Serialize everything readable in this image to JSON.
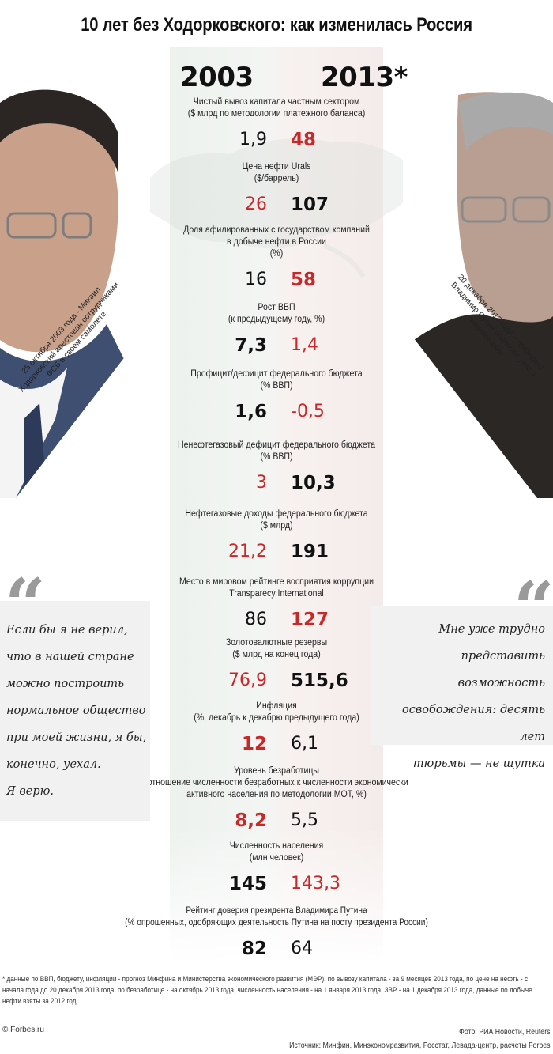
{
  "title": "10 лет без Ходорковского: как изменилась Россия",
  "years": {
    "left": "2003",
    "right": "2013*"
  },
  "rows": [
    {
      "label": [
        "Чистый вывоз капитала частным сектором",
        "($ млрд по методологии платежного баланса)"
      ],
      "v2003": "1,9",
      "v2013": "48"
    },
    {
      "label": [
        "Цена нефти Urals",
        "($/баррель)"
      ],
      "v2003": "26",
      "v2013": "107"
    },
    {
      "label": [
        "Доля афилированных с государством компаний",
        "в добыче нефти в России",
        "(%)"
      ],
      "v2003": "16",
      "v2013": "58"
    },
    {
      "label": [
        "Рост ВВП",
        "(к предыдущему году, %)"
      ],
      "v2003": "7,3",
      "v2013": "1,4"
    },
    {
      "label": [
        "Профицит/дефицит федерального бюджета",
        "(% ВВП)"
      ],
      "v2003": "1,6",
      "v2013": "-0,5"
    },
    {
      "label": [
        "Ненефтегазовый дефицит федерального бюджета",
        "(% ВВП)"
      ],
      "v2003": "3",
      "v2013": "10,3"
    },
    {
      "label": [
        "Нефтегазовые доходы федерального бюджета",
        "($ млрд)"
      ],
      "v2003": "21,2",
      "v2013": "191"
    },
    {
      "label": [
        "Место в мировом рейтинге восприятия коррупции",
        "Transparecy International"
      ],
      "v2003": "86",
      "v2013": "127"
    },
    {
      "label": [
        "Золотовалютные резервы",
        "($ млрд на конец года)"
      ],
      "v2003": "76,9",
      "v2013": "515,6"
    },
    {
      "label": [
        "Инфляция",
        "(%, декабрь к декабрю предыдущего года)"
      ],
      "v2003": "12",
      "v2013": "6,1"
    },
    {
      "label": [
        "Уровень безработицы",
        "(отношение численности безработных к численности экономически",
        "активного населения по методологии МОТ, %)"
      ],
      "v2003": "8,2",
      "v2013": "5,5"
    },
    {
      "label": [
        "Численность населения",
        "(млн человек)"
      ],
      "v2003": "145",
      "v2013": "143,3"
    },
    {
      "label": [
        "Рейтинг доверия президента Владимира Путина",
        "(% опрошенных, одобряющих деятельность Путина на посту президента России)"
      ],
      "v2003": "82",
      "v2013": "64"
    }
  ],
  "captions": {
    "left": "25 октября 2003 года - Михаил Ходорковский арестован сотрудниками ФСБ в своем самолете",
    "right": "20 декабря 2013 года – президент Владимир Путин подписал указ о помиловании"
  },
  "quotes": {
    "left": [
      "Если бы я не верил,",
      "что в нашей стране",
      "можно построить",
      "нормальное общество",
      "при моей жизни, я бы,",
      "конечно, уехал.",
      "Я верю."
    ],
    "right": [
      "Мне уже трудно",
      "представить возможность",
      "освобождения: десять лет",
      "тюрьмы — не шутка"
    ]
  },
  "footnote": "* данные по ВВП, бюджету, инфляции - прогноз Минфина и Министерства экономического развития (МЭР), по вывозу капитала - за 9 месяцев 2013 года, по цене на нефть - с начала года до 20 декабря 2013 года, по безработице - на октябрь 2013 года, численность населения - на 1 января 2013 года, ЗВР - на 1 декабря 2013 года, данные по добыче нефти взяты за 2012 год.",
  "copyright": "© Forbes.ru",
  "photo_credit": "Фото: РИА Новости, Reuters",
  "sources": "Источник: Минфин, Минэкономразвития, Росстат, Левада-центр, расчеты Forbes",
  "colors": {
    "accent_red": "#c8282a",
    "text": "#111111"
  }
}
